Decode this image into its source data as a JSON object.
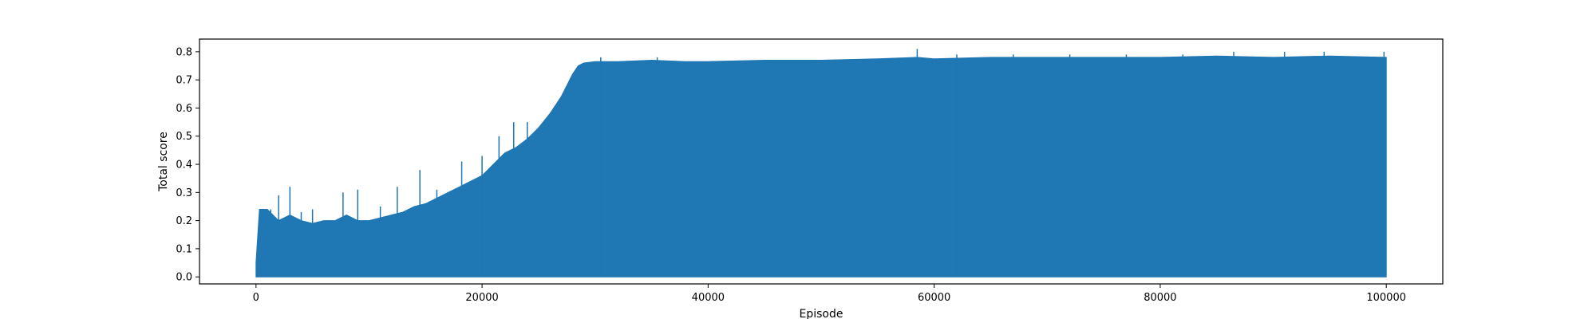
{
  "chart_data": {
    "type": "line",
    "title": "",
    "xlabel": "Episode",
    "ylabel": "Total score",
    "xlim": [
      -5000,
      105000
    ],
    "ylim": [
      -0.025,
      0.845
    ],
    "x_ticks": [
      0,
      20000,
      40000,
      60000,
      80000,
      100000
    ],
    "x_tick_labels": [
      "0",
      "20000",
      "40000",
      "60000",
      "80000",
      "100000"
    ],
    "y_ticks": [
      0.0,
      0.1,
      0.2,
      0.3,
      0.4,
      0.5,
      0.6,
      0.7,
      0.8
    ],
    "y_tick_labels": [
      "0.0",
      "0.1",
      "0.2",
      "0.3",
      "0.4",
      "0.5",
      "0.6",
      "0.7",
      "0.8"
    ],
    "grid": false,
    "legend": "none",
    "color": "#1f77b4",
    "series": [
      {
        "x": [
          0,
          300,
          1000,
          2000,
          3000,
          4000,
          5000,
          6000,
          7000,
          8000,
          9000,
          10000,
          11000,
          12000,
          13000,
          14000,
          15000,
          16000,
          17000,
          18000,
          19000,
          20000,
          21000,
          22000,
          23000,
          24000,
          25000,
          26000,
          27000,
          27500,
          28000,
          28500,
          29000,
          30000,
          32000,
          35000,
          38000,
          40000,
          45000,
          50000,
          55000,
          58500,
          60000,
          65000,
          70000,
          75000,
          80000,
          85000,
          90000,
          95000,
          100000
        ],
        "upper": [
          0.05,
          0.24,
          0.24,
          0.2,
          0.22,
          0.2,
          0.19,
          0.2,
          0.2,
          0.22,
          0.2,
          0.2,
          0.21,
          0.22,
          0.23,
          0.25,
          0.26,
          0.28,
          0.3,
          0.32,
          0.34,
          0.36,
          0.4,
          0.44,
          0.46,
          0.49,
          0.53,
          0.58,
          0.64,
          0.68,
          0.72,
          0.75,
          0.76,
          0.765,
          0.765,
          0.77,
          0.765,
          0.765,
          0.77,
          0.77,
          0.775,
          0.78,
          0.775,
          0.78,
          0.78,
          0.78,
          0.78,
          0.785,
          0.78,
          0.785,
          0.78
        ],
        "lower": [
          0.0,
          0.0,
          0.0,
          0.0,
          0.0,
          0.0,
          0.0,
          0.0,
          0.0,
          0.0,
          0.0,
          0.0,
          0.0,
          0.0,
          0.0,
          0.0,
          0.0,
          0.0,
          0.0,
          0.0,
          0.0,
          0.0,
          0.0,
          0.0,
          0.0,
          0.0,
          0.0,
          0.0,
          0.0,
          0.0,
          0.0,
          0.0,
          0.0,
          0.0,
          0.0,
          0.0,
          0.0,
          0.0,
          0.0,
          0.0,
          0.0,
          0.0,
          0.0,
          0.0,
          0.0,
          0.0,
          0.0,
          0.0,
          0.0,
          0.0,
          0.0
        ]
      }
    ],
    "spikes": [
      [
        600,
        0.24
      ],
      [
        1300,
        0.24
      ],
      [
        2000,
        0.29
      ],
      [
        3000,
        0.32
      ],
      [
        4000,
        0.23
      ],
      [
        5000,
        0.24
      ],
      [
        7700,
        0.3
      ],
      [
        9000,
        0.31
      ],
      [
        11000,
        0.25
      ],
      [
        12500,
        0.32
      ],
      [
        14500,
        0.38
      ],
      [
        16000,
        0.31
      ],
      [
        18200,
        0.41
      ],
      [
        20000,
        0.43
      ],
      [
        21500,
        0.5
      ],
      [
        22800,
        0.55
      ],
      [
        24000,
        0.55
      ],
      [
        25500,
        0.55
      ],
      [
        26300,
        0.56
      ],
      [
        30500,
        0.78
      ],
      [
        35500,
        0.78
      ],
      [
        58500,
        0.81
      ],
      [
        62000,
        0.79
      ],
      [
        67000,
        0.79
      ],
      [
        72000,
        0.79
      ],
      [
        77000,
        0.79
      ],
      [
        82000,
        0.79
      ],
      [
        86500,
        0.8
      ],
      [
        91000,
        0.8
      ],
      [
        94500,
        0.8
      ],
      [
        99800,
        0.8
      ]
    ]
  }
}
